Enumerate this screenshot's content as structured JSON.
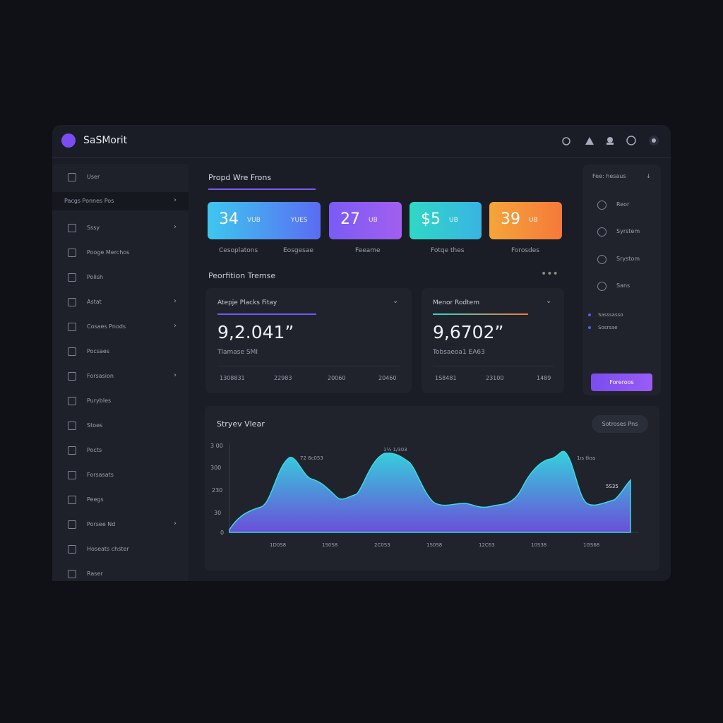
{
  "header": {
    "brand": "SaSMorit"
  },
  "sidebar": {
    "items": [
      {
        "label": "User",
        "chevron": false
      },
      {
        "label": "Pacgs Ponnes Pos",
        "chevron": true,
        "active": true
      },
      {
        "label": "Sssy",
        "chevron": true
      },
      {
        "label": "Pooge Merchos",
        "chevron": false
      },
      {
        "label": "Polish",
        "chevron": false
      },
      {
        "label": "Astat",
        "chevron": true
      },
      {
        "label": "Cosaes Pnods",
        "chevron": true
      },
      {
        "label": "Pocsaes",
        "chevron": false
      },
      {
        "label": "Forsasion",
        "chevron": true
      },
      {
        "label": "Purybles",
        "chevron": false
      },
      {
        "label": "Stoes",
        "chevron": false
      },
      {
        "label": "Pocts",
        "chevron": false
      },
      {
        "label": "Forsasats",
        "chevron": false
      },
      {
        "label": "Peegs",
        "chevron": false
      },
      {
        "label": "Porsee Nd",
        "chevron": true
      },
      {
        "label": "Hoseats chster",
        "chevron": false
      },
      {
        "label": "Raser",
        "chevron": false
      }
    ]
  },
  "main": {
    "title": "Propd Wre Frons",
    "kpis": [
      {
        "value": "34",
        "unit": "VUB",
        "extra": "YUES"
      },
      {
        "value": "27",
        "unit": "UB"
      },
      {
        "value": "$5",
        "unit": "UB"
      },
      {
        "value": "39",
        "unit": "UB"
      }
    ],
    "kpi_labels": [
      "Cesoplatons",
      "Eosgesae",
      "Feeame",
      "Fotqe thes",
      "Forosdes"
    ],
    "section_title": "Peorfition Tremse",
    "panels": [
      {
        "title": "Atepje Placks Fitay",
        "value": "9,2.041”",
        "caption": "Tlamase SMI",
        "ticks": [
          "1308831",
          "22983",
          "20060",
          "20460"
        ]
      },
      {
        "title": "Menor Rodtem",
        "value": "9,6702”",
        "caption": "Tobsaeoa1 EA63",
        "ticks": [
          "1S8481",
          "23100",
          "1489"
        ]
      }
    ],
    "chart": {
      "title": "Stryev Vlear",
      "button": "Sotroses Pns",
      "y_labels": [
        "3 00",
        "300",
        "230",
        "30",
        "0"
      ],
      "annotations": [
        "72 6c053",
        "1½ 1/303",
        "1ıs tkss",
        "5S35"
      ],
      "x_labels": [
        "1D0S8",
        "1S0S8",
        "2C0S3",
        "1S0S8",
        "12C63",
        "10S38",
        "1GS68"
      ]
    }
  },
  "right_panel": {
    "title": "Fee: hesaus",
    "items": [
      "Reor",
      "Syrstem",
      "Srystom",
      "Sans"
    ],
    "legend": [
      "Sasssasso",
      "Sosrsae"
    ],
    "button": "Foreroos"
  }
}
